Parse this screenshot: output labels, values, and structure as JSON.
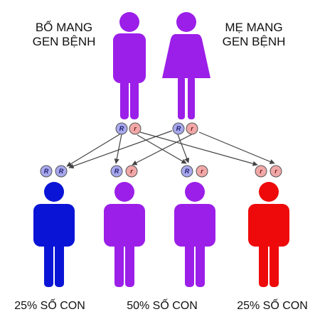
{
  "parents": {
    "father": {
      "label_line1": "BỐ MANG",
      "label_line2": "GEN BỆNH",
      "color": "#9b1fe8",
      "alleles": [
        "R",
        "r"
      ]
    },
    "mother": {
      "label_line1": "MẸ MANG",
      "label_line2": "GEN BỆNH",
      "color": "#9b1fe8",
      "alleles": [
        "R",
        "r"
      ]
    }
  },
  "children": [
    {
      "alleles": [
        "R",
        "R"
      ],
      "color": "#0a14d6",
      "label": "25% SỐ CON"
    },
    {
      "alleles": [
        "R",
        "r"
      ],
      "color": "#9b1fe8",
      "label": "50% SỐ CON"
    },
    {
      "alleles": [
        "R",
        "r"
      ],
      "color": "#9b1fe8"
    },
    {
      "alleles": [
        "r",
        "r"
      ],
      "color": "#ee0a0a",
      "label": "25% SỐ CON"
    }
  ],
  "allele_colors": {
    "R": "#a8a8ec",
    "r": "#f0a8a8",
    "outline": "#555555"
  }
}
